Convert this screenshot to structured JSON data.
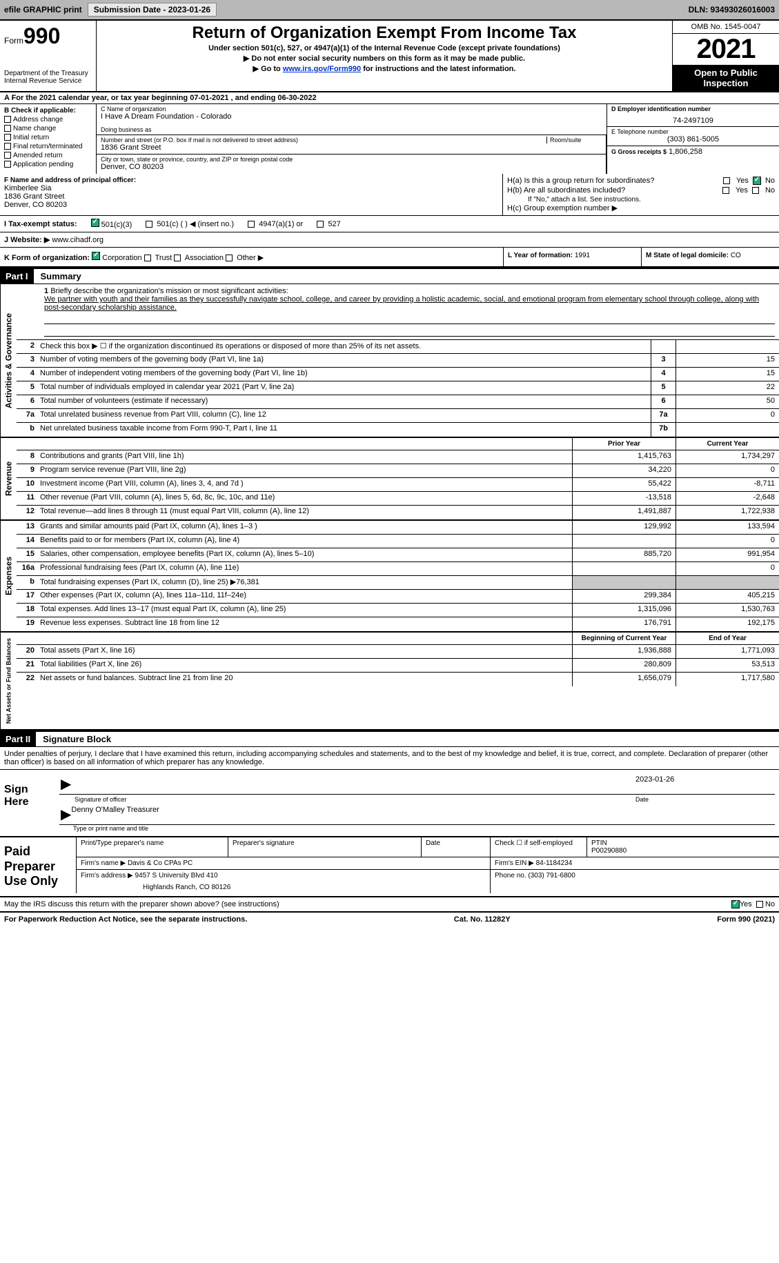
{
  "topbar": {
    "efile": "efile GRAPHIC print",
    "submission": "Submission Date - 2023-01-26",
    "dln": "DLN: 93493026016003"
  },
  "header": {
    "form_word": "Form",
    "form_number": "990",
    "dept": "Department of the Treasury\nInternal Revenue Service",
    "title": "Return of Organization Exempt From Income Tax",
    "subtitle": "Under section 501(c), 527, or 4947(a)(1) of the Internal Revenue Code (except private foundations)",
    "note1": "▶ Do not enter social security numbers on this form as it may be made public.",
    "note2_pre": "▶ Go to ",
    "note2_link": "www.irs.gov/Form990",
    "note2_post": " for instructions and the latest information.",
    "omb": "OMB No. 1545-0047",
    "year": "2021",
    "inspection": "Open to Public Inspection"
  },
  "period": "A For the 2021 calendar year, or tax year beginning 07-01-2021   , and ending 06-30-2022",
  "sectionB": {
    "label": "B Check if applicable:",
    "opts": [
      "Address change",
      "Name change",
      "Initial return",
      "Final return/terminated",
      "Amended return",
      "Application pending"
    ]
  },
  "sectionC": {
    "name_lbl": "C Name of organization",
    "name": "I Have A Dream Foundation - Colorado",
    "dba_lbl": "Doing business as",
    "street_lbl": "Number and street (or P.O. box if mail is not delivered to street address)",
    "room_lbl": "Room/suite",
    "street": "1836 Grant Street",
    "city_lbl": "City or town, state or province, country, and ZIP or foreign postal code",
    "city": "Denver, CO  80203"
  },
  "sectionD": {
    "lbl": "D Employer identification number",
    "val": "74-2497109"
  },
  "sectionE": {
    "lbl": "E Telephone number",
    "val": "(303) 861-5005"
  },
  "sectionG": {
    "lbl": "G Gross receipts $",
    "val": "1,806,258"
  },
  "sectionF": {
    "lbl": "F Name and address of principal officer:",
    "name": "Kimberlee Sia",
    "street": "1836 Grant Street",
    "city": "Denver, CO  80203"
  },
  "sectionH": {
    "ha": "H(a)  Is this a group return for subordinates?",
    "hb": "H(b)  Are all subordinates included?",
    "hb_note": "If \"No,\" attach a list. See instructions.",
    "hc": "H(c)  Group exemption number ▶",
    "yes": "Yes",
    "no": "No"
  },
  "sectionI": {
    "lbl": "I   Tax-exempt status:",
    "opts": [
      "501(c)(3)",
      "501(c) (  ) ◀ (insert no.)",
      "4947(a)(1) or",
      "527"
    ]
  },
  "sectionJ": {
    "lbl": "J   Website: ▶",
    "val": "www.cihadf.org"
  },
  "sectionK": {
    "lbl": "K Form of organization:",
    "opts": [
      "Corporation",
      "Trust",
      "Association",
      "Other ▶"
    ]
  },
  "sectionL": {
    "lbl": "L Year of formation:",
    "val": "1991"
  },
  "sectionM": {
    "lbl": "M State of legal domicile:",
    "val": "CO"
  },
  "partI": {
    "tag": "Part I",
    "title": "Summary"
  },
  "mission": {
    "num": "1",
    "lbl": "Briefly describe the organization's mission or most significant activities:",
    "txt": "We partner with youth and their families as they successfully navigate school, college, and career by providing a holistic academic, social, and emotional program from elementary school through college, along with post-secondary scholarship assistance."
  },
  "lines_gov": [
    {
      "n": "2",
      "d": "Check this box ▶ ☐ if the organization discontinued its operations or disposed of more than 25% of its net assets.",
      "box": "",
      "amt": ""
    },
    {
      "n": "3",
      "d": "Number of voting members of the governing body (Part VI, line 1a)",
      "box": "3",
      "amt": "15"
    },
    {
      "n": "4",
      "d": "Number of independent voting members of the governing body (Part VI, line 1b)",
      "box": "4",
      "amt": "15"
    },
    {
      "n": "5",
      "d": "Total number of individuals employed in calendar year 2021 (Part V, line 2a)",
      "box": "5",
      "amt": "22"
    },
    {
      "n": "6",
      "d": "Total number of volunteers (estimate if necessary)",
      "box": "6",
      "amt": "50"
    },
    {
      "n": "7a",
      "d": "Total unrelated business revenue from Part VIII, column (C), line 12",
      "box": "7a",
      "amt": "0"
    },
    {
      "n": "b",
      "d": "Net unrelated business taxable income from Form 990-T, Part I, line 11",
      "box": "7b",
      "amt": ""
    }
  ],
  "colhdr": {
    "prior": "Prior Year",
    "current": "Current Year"
  },
  "lines_rev": [
    {
      "n": "8",
      "d": "Contributions and grants (Part VIII, line 1h)",
      "p": "1,415,763",
      "c": "1,734,297"
    },
    {
      "n": "9",
      "d": "Program service revenue (Part VIII, line 2g)",
      "p": "34,220",
      "c": "0"
    },
    {
      "n": "10",
      "d": "Investment income (Part VIII, column (A), lines 3, 4, and 7d )",
      "p": "55,422",
      "c": "-8,711"
    },
    {
      "n": "11",
      "d": "Other revenue (Part VIII, column (A), lines 5, 6d, 8c, 9c, 10c, and 11e)",
      "p": "-13,518",
      "c": "-2,648"
    },
    {
      "n": "12",
      "d": "Total revenue—add lines 8 through 11 (must equal Part VIII, column (A), line 12)",
      "p": "1,491,887",
      "c": "1,722,938"
    }
  ],
  "lines_exp": [
    {
      "n": "13",
      "d": "Grants and similar amounts paid (Part IX, column (A), lines 1–3 )",
      "p": "129,992",
      "c": "133,594"
    },
    {
      "n": "14",
      "d": "Benefits paid to or for members (Part IX, column (A), line 4)",
      "p": "",
      "c": "0"
    },
    {
      "n": "15",
      "d": "Salaries, other compensation, employee benefits (Part IX, column (A), lines 5–10)",
      "p": "885,720",
      "c": "991,954"
    },
    {
      "n": "16a",
      "d": "Professional fundraising fees (Part IX, column (A), line 11e)",
      "p": "",
      "c": "0"
    },
    {
      "n": "b",
      "d": "Total fundraising expenses (Part IX, column (D), line 25) ▶76,381",
      "p": "grey",
      "c": "grey"
    },
    {
      "n": "17",
      "d": "Other expenses (Part IX, column (A), lines 11a–11d, 11f–24e)",
      "p": "299,384",
      "c": "405,215"
    },
    {
      "n": "18",
      "d": "Total expenses. Add lines 13–17 (must equal Part IX, column (A), line 25)",
      "p": "1,315,096",
      "c": "1,530,763"
    },
    {
      "n": "19",
      "d": "Revenue less expenses. Subtract line 18 from line 12",
      "p": "176,791",
      "c": "192,175"
    }
  ],
  "colhdr2": {
    "beg": "Beginning of Current Year",
    "end": "End of Year"
  },
  "lines_net": [
    {
      "n": "20",
      "d": "Total assets (Part X, line 16)",
      "p": "1,936,888",
      "c": "1,771,093"
    },
    {
      "n": "21",
      "d": "Total liabilities (Part X, line 26)",
      "p": "280,809",
      "c": "53,513"
    },
    {
      "n": "22",
      "d": "Net assets or fund balances. Subtract line 21 from line 20",
      "p": "1,656,079",
      "c": "1,717,580"
    }
  ],
  "partII": {
    "tag": "Part II",
    "title": "Signature Block"
  },
  "sig_declare": "Under penalties of perjury, I declare that I have examined this return, including accompanying schedules and statements, and to the best of my knowledge and belief, it is true, correct, and complete. Declaration of preparer (other than officer) is based on all information of which preparer has any knowledge.",
  "sign_here": "Sign Here",
  "sig_officer_lbl": "Signature of officer",
  "sig_date": "2023-01-26",
  "sig_date_lbl": "Date",
  "sig_name": "Denny O'Malley  Treasurer",
  "sig_name_lbl": "Type or print name and title",
  "paid_prep": "Paid Preparer Use Only",
  "prep": {
    "print_lbl": "Print/Type preparer's name",
    "sig_lbl": "Preparer's signature",
    "date_lbl": "Date",
    "check_lbl": "Check ☐ if self-employed",
    "ptin_lbl": "PTIN",
    "ptin": "P00290880",
    "firm_name_lbl": "Firm's name    ▶",
    "firm_name": "Davis & Co CPAs PC",
    "firm_ein_lbl": "Firm's EIN ▶",
    "firm_ein": "84-1184234",
    "firm_addr_lbl": "Firm's address ▶",
    "firm_addr": "9457 S University Blvd 410",
    "firm_city": "Highlands Ranch, CO  80126",
    "phone_lbl": "Phone no.",
    "phone": "(303) 791-6800"
  },
  "may_irs": "May the IRS discuss this return with the preparer shown above? (see instructions)",
  "paperwork": "For Paperwork Reduction Act Notice, see the separate instructions.",
  "catno": "Cat. No. 11282Y",
  "formfoot": "Form 990 (2021)",
  "tabs": {
    "gov": "Activities & Governance",
    "rev": "Revenue",
    "exp": "Expenses",
    "net": "Net Assets or Fund Balances"
  }
}
